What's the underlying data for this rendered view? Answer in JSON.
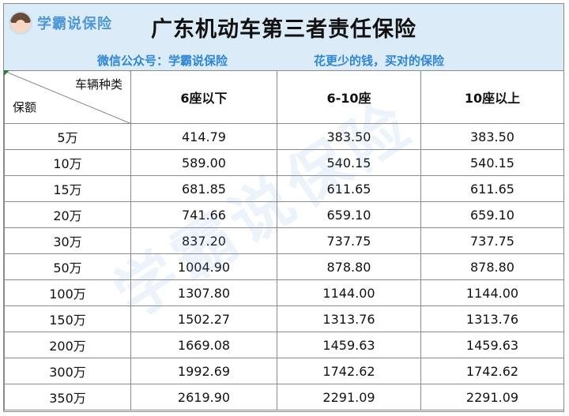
{
  "logo": {
    "text": "学霸说保险",
    "icon": "avatar-icon"
  },
  "title": "广东机动车第三者责任保险",
  "subheader": {
    "left": "微信公众号：学霸说保险",
    "right": "花更少的钱，买对的保险"
  },
  "watermark": "学霸说保险",
  "table": {
    "corner_top": "车辆种类",
    "corner_bottom": "保额",
    "columns": [
      "6座以下",
      "6-10座",
      "10座以上"
    ],
    "rows": [
      {
        "label": "5万",
        "values": [
          "414.79",
          "383.50",
          "383.50"
        ]
      },
      {
        "label": "10万",
        "values": [
          "589.00",
          "540.15",
          "540.15"
        ]
      },
      {
        "label": "15万",
        "values": [
          "681.85",
          "611.65",
          "611.65"
        ]
      },
      {
        "label": "20万",
        "values": [
          "741.66",
          "659.10",
          "659.10"
        ]
      },
      {
        "label": "30万",
        "values": [
          "837.20",
          "737.75",
          "737.75"
        ]
      },
      {
        "label": "50万",
        "values": [
          "1004.90",
          "878.80",
          "878.80"
        ]
      },
      {
        "label": "100万",
        "values": [
          "1307.80",
          "1144.00",
          "1144.00"
        ]
      },
      {
        "label": "150万",
        "values": [
          "1502.27",
          "1313.76",
          "1313.76"
        ]
      },
      {
        "label": "200万",
        "values": [
          "1669.08",
          "1459.63",
          "1459.63"
        ]
      },
      {
        "label": "300万",
        "values": [
          "1992.69",
          "1742.62",
          "1742.62"
        ]
      },
      {
        "label": "350万",
        "values": [
          "2619.90",
          "2291.09",
          "2291.09"
        ]
      }
    ]
  }
}
